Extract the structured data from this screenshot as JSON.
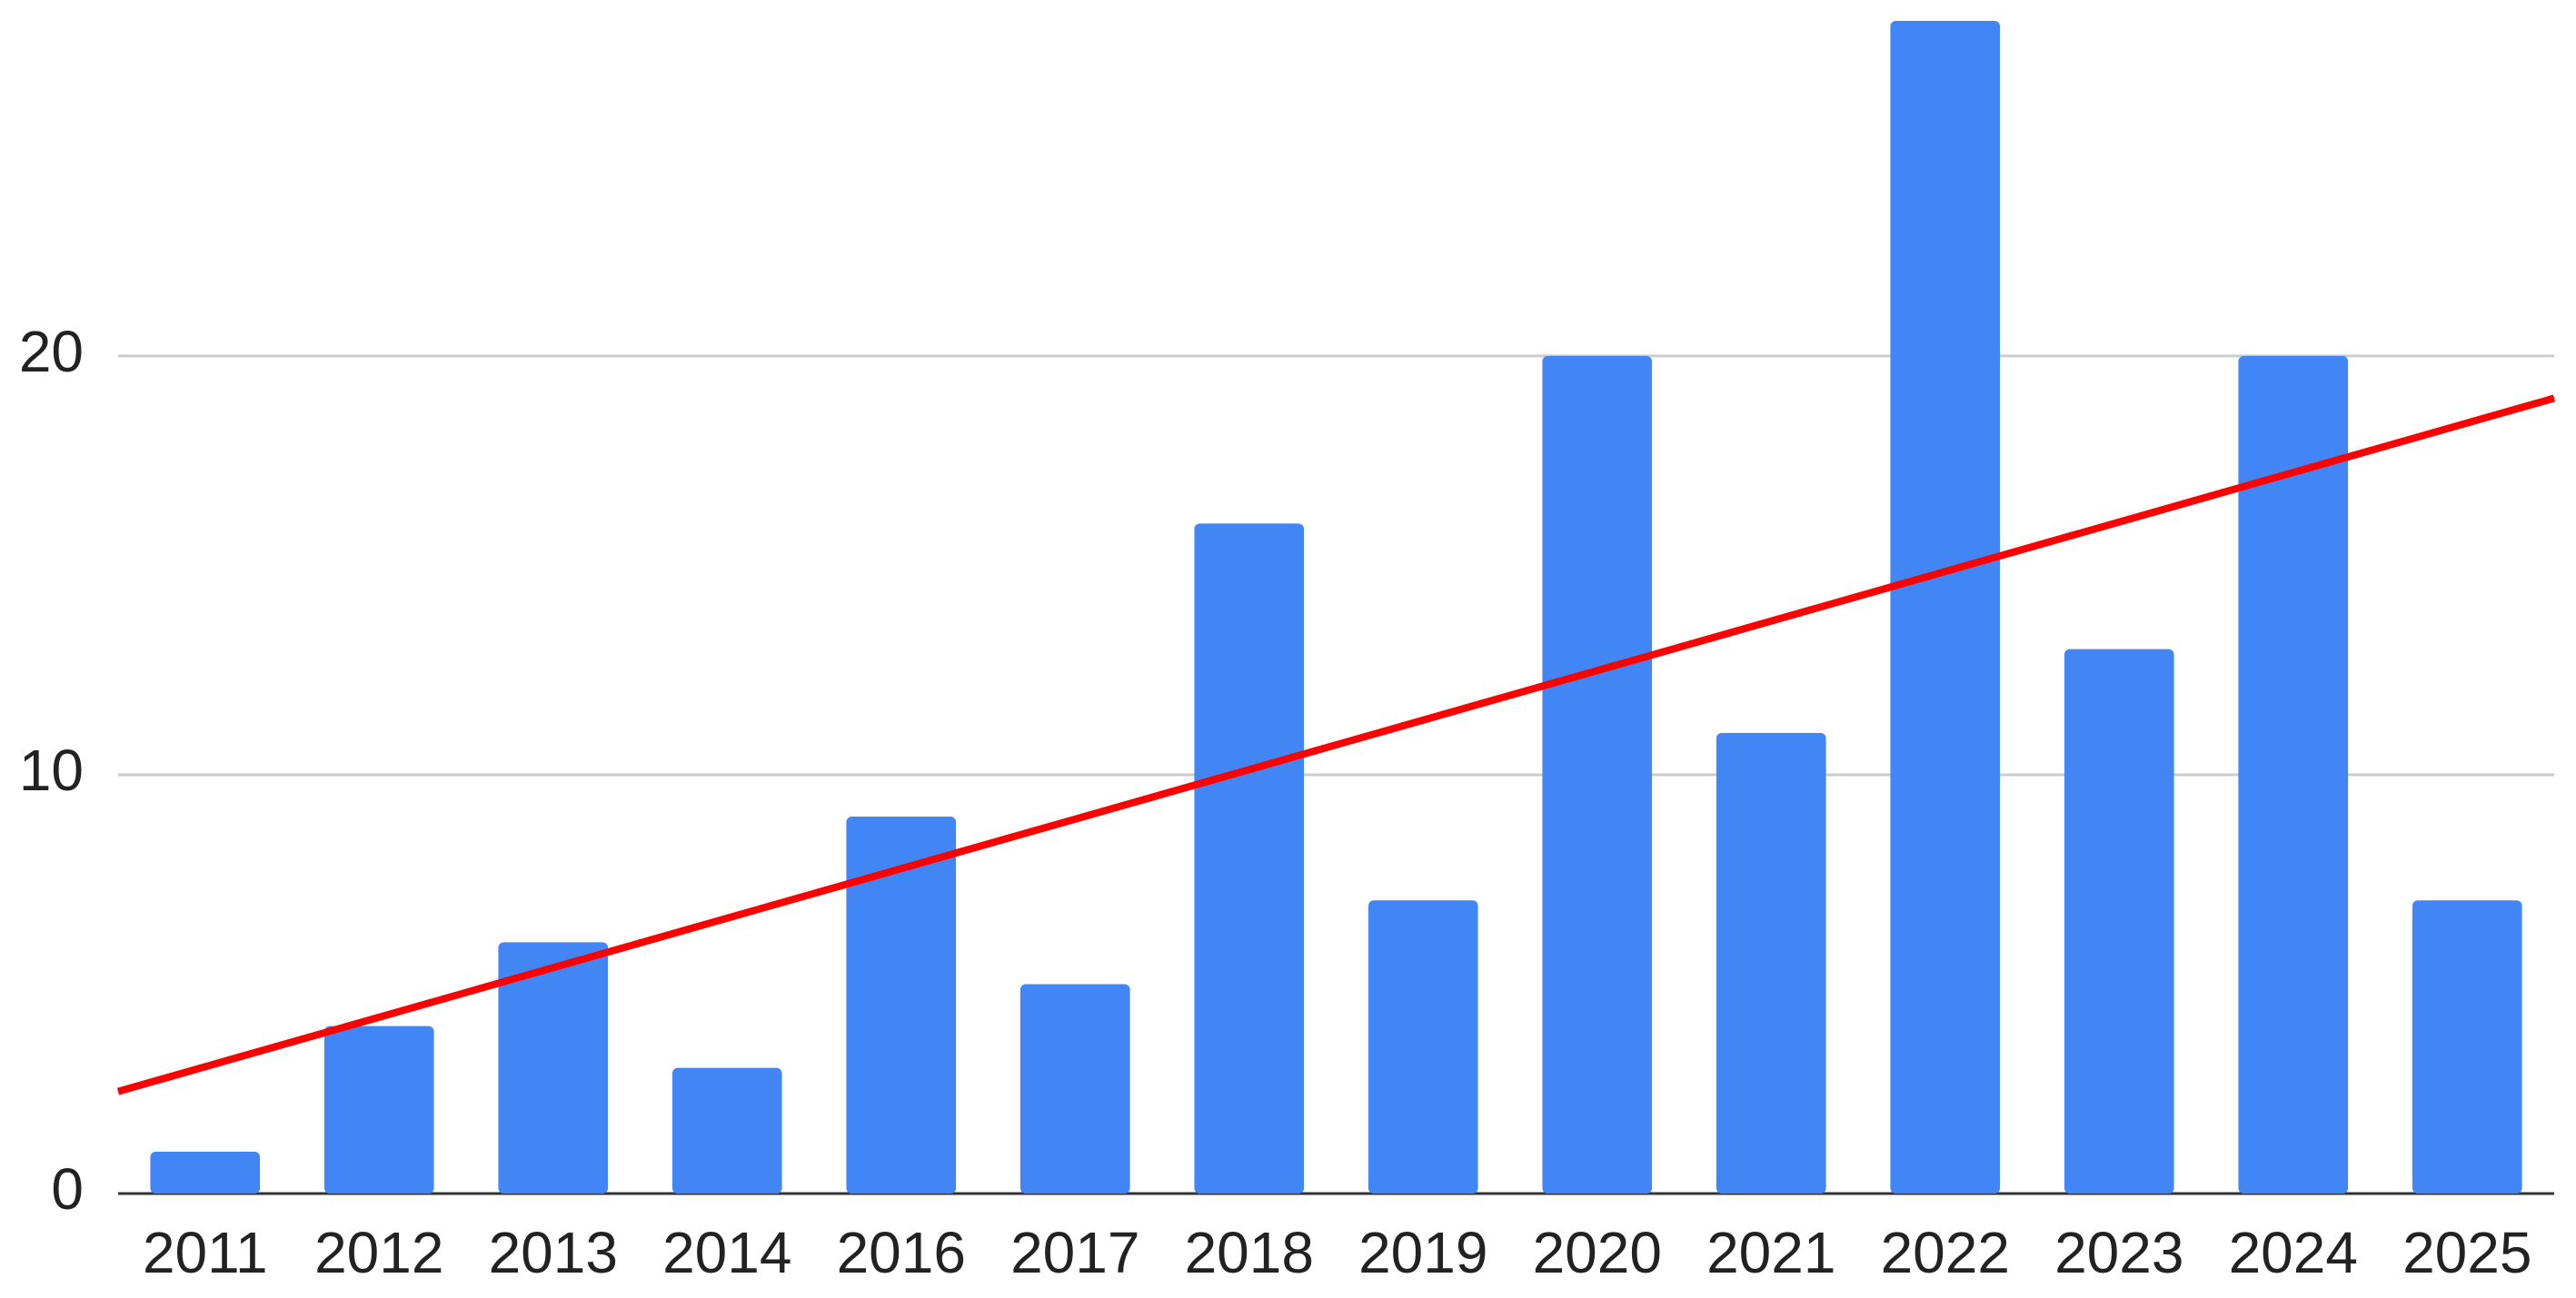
{
  "chart_data": {
    "type": "bar",
    "categories": [
      "2011",
      "2012",
      "2013",
      "2014",
      "2016",
      "2017",
      "2018",
      "2019",
      "2020",
      "2021",
      "2022",
      "2023",
      "2024",
      "2025"
    ],
    "values": [
      1,
      4,
      6,
      3,
      9,
      5,
      16,
      7,
      20,
      11,
      28,
      13,
      20,
      7
    ],
    "color": "#4285f4",
    "ylim": [
      0,
      28.5
    ],
    "yticks": [
      0,
      10,
      20
    ],
    "grid": true,
    "trendline": {
      "type": "linear",
      "color": "#ff0000"
    }
  }
}
